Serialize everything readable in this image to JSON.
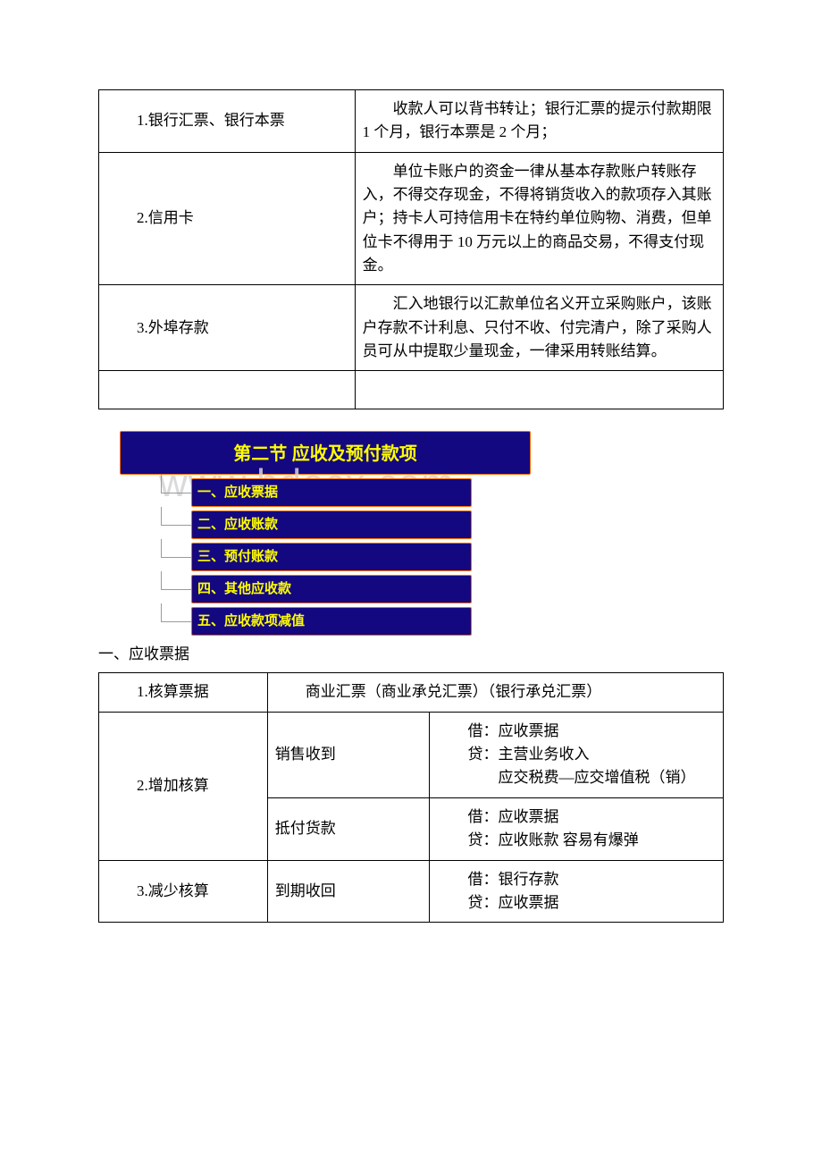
{
  "table1": {
    "rows": [
      {
        "label": "1.银行汇票、银行本票",
        "desc": "收款人可以背书转让；银行汇票的提示付款期限 1 个月，银行本票是 2 个月；"
      },
      {
        "label": "2.信用卡",
        "desc": "单位卡账户的资金一律从基本存款账户转账存入，不得交存现金，不得将销货收入的款项存入其账户；持卡人可持信用卡在特约单位购物、消费，但单位卡不得用于 10 万元以上的商品交易，不得支付现金。"
      },
      {
        "label": "3.外埠存款",
        "desc": "汇入地银行以汇款单位名义开立采购账户，该账户存款不计利息、只付不收、付完清户，除了采购人员可从中提取少量现金，一律采用转账结算。"
      }
    ]
  },
  "banner": {
    "title": "第二节  应收及预付款项",
    "items": [
      "一、应收票据",
      "二、应收账款",
      "三、预付账款",
      "四、其他应收款",
      "五、应收款项减值"
    ],
    "watermark": "www.bdocx.com"
  },
  "subheading": "一、应收票据",
  "table2": {
    "row1": {
      "label": "1.核算票据",
      "desc": "商业汇票（商业承兑汇票）（银行承兑汇票）"
    },
    "row2": {
      "label": "2.增加核算",
      "sub": [
        {
          "m": "销售收到",
          "entry": "借：应收票据\n贷：主营业务收入\n        应交税费—应交增值税（销）"
        },
        {
          "m": "抵付货款",
          "entry": "借：应收票据\n贷：应收账款  容易有爆弹"
        }
      ]
    },
    "row3": {
      "label": "3.减少核算",
      "m": "到期收回",
      "entry": "借：银行存款\n贷：应收票据"
    }
  },
  "style": {
    "banner_bg": "#140880",
    "banner_border": "#ff6a00",
    "banner_text": "#ffff00",
    "table_border": "#000000",
    "watermark_color": "#d4d4d4"
  }
}
